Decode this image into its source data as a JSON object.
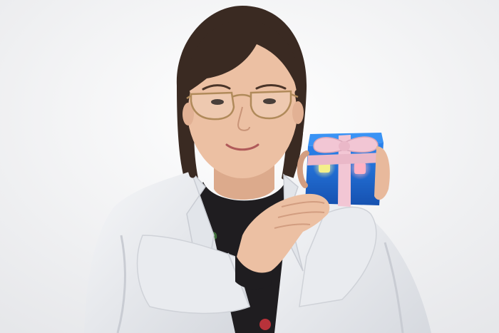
{
  "photo": {
    "subject": "person-in-lab-coat-holding-gift-box",
    "colors": {
      "background": "#f2f2f4",
      "lab_coat": "#eef0f3",
      "lab_coat_shadow": "#c9ccd3",
      "sweater": "#1f1d20",
      "hair": "#3a2a22",
      "skin": "#e8b99c",
      "skin_shadow": "#d29d80",
      "glasses_frame": "#b08a5a",
      "box": "#1f6fd6",
      "box_dark": "#1550a8",
      "ribbon": "#f2c6d4",
      "ribbon_shadow": "#d9a6b8",
      "light_yellow": "#f4f08a",
      "light_pink": "#ff9fb3"
    }
  }
}
